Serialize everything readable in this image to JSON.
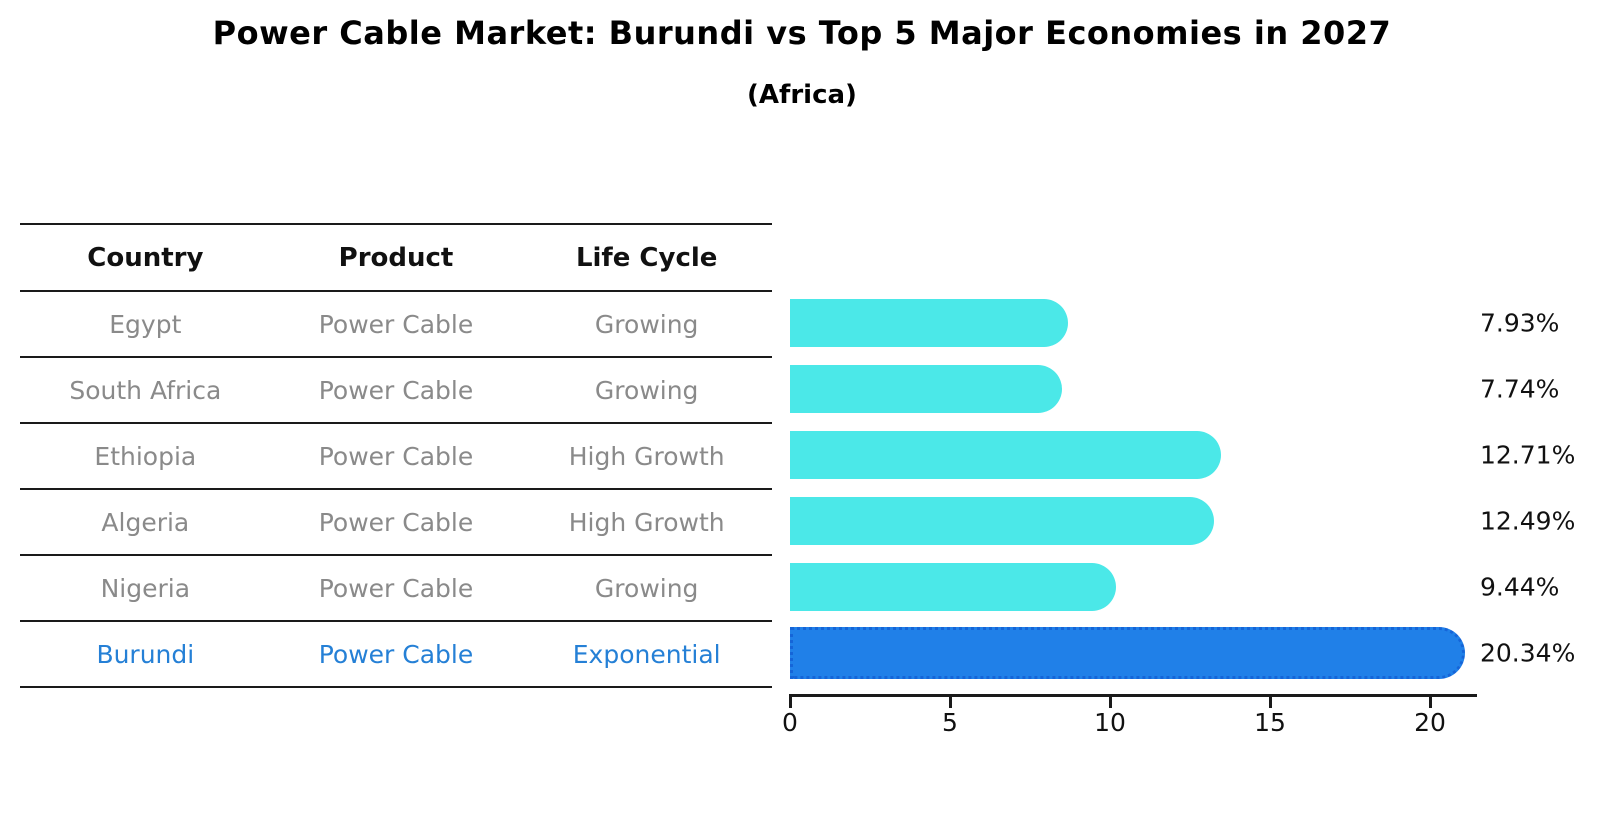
{
  "title": "Power Cable Market: Burundi vs Top 5 Major Economies in 2027",
  "subtitle": "(Africa)",
  "table": {
    "columns": [
      "Country",
      "Product",
      "Life Cycle"
    ],
    "rows": [
      {
        "country": "Egypt",
        "product": "Power Cable",
        "life_cycle": "Growing",
        "highlight": false
      },
      {
        "country": "South Africa",
        "product": "Power Cable",
        "life_cycle": "Growing",
        "highlight": false
      },
      {
        "country": "Ethiopia",
        "product": "Power Cable",
        "life_cycle": "High Growth",
        "highlight": false
      },
      {
        "country": "Algeria",
        "product": "Power Cable",
        "life_cycle": "High Growth",
        "highlight": false
      },
      {
        "country": "Nigeria",
        "product": "Power Cable",
        "life_cycle": "Growing",
        "highlight": false
      },
      {
        "country": "Burundi",
        "product": "Power Cable",
        "life_cycle": "Exponential",
        "highlight": true
      }
    ]
  },
  "chart_data": {
    "type": "bar",
    "orientation": "horizontal",
    "title": "Power Cable Market: Burundi vs Top 5 Major Economies in 2027",
    "subtitle": "(Africa)",
    "categories": [
      "Egypt",
      "South Africa",
      "Ethiopia",
      "Algeria",
      "Nigeria",
      "Burundi"
    ],
    "values": [
      7.93,
      7.74,
      12.71,
      12.49,
      9.44,
      20.34
    ],
    "value_labels": [
      "7.93%",
      "7.74%",
      "12.71%",
      "12.49%",
      "9.44%",
      "20.34%"
    ],
    "xlabel": "",
    "ylabel": "",
    "xticks": [
      0,
      5,
      10,
      15,
      20
    ],
    "xlim": [
      0,
      21.4
    ],
    "grid": false,
    "legend": false,
    "highlight_index": 5
  },
  "colors": {
    "bar": "#4BE8E8",
    "highlight_bar": "#2080E8",
    "highlight_bar_edge": "#1565D8",
    "highlight_text": "#2580D6",
    "cell_text": "#8A8A8A",
    "header_text": "#111111",
    "axis_line": "#1A1A1A"
  }
}
